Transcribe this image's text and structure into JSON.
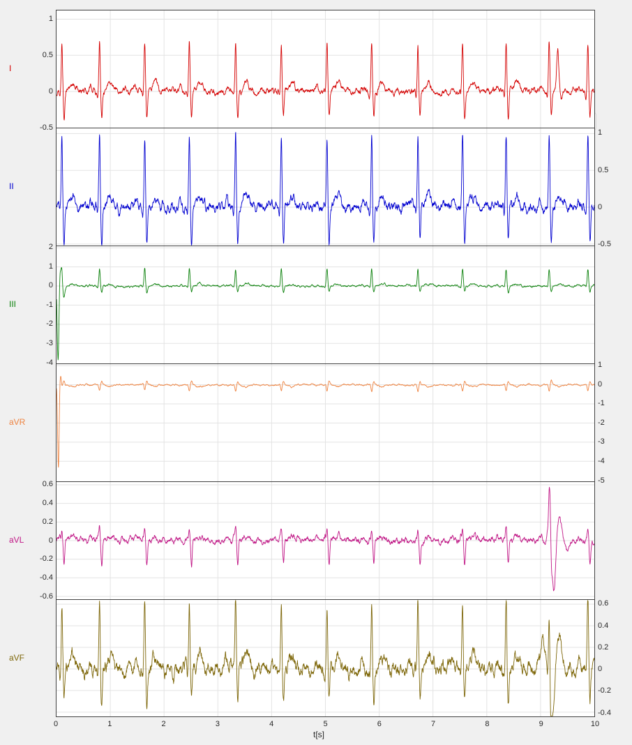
{
  "figure": {
    "background": "#f0f0f0",
    "plot_background": "#ffffff",
    "grid_color": "#e3e3e3",
    "axis_color": "#404040",
    "tick_label_color": "#262626"
  },
  "toolbar": {
    "icons": [
      {
        "name": "export-icon"
      },
      {
        "name": "brush-icon"
      },
      {
        "name": "datatip-icon"
      },
      {
        "name": "pan-icon"
      },
      {
        "name": "zoom-in-icon"
      },
      {
        "name": "zoom-out-icon"
      },
      {
        "name": "restore-view-icon"
      }
    ]
  },
  "chart_data": {
    "type": "line",
    "title": "",
    "x_label": "t[s]",
    "xlim": [
      0,
      10
    ],
    "x_ticks": [
      0,
      1,
      2,
      3,
      4,
      5,
      6,
      7,
      8,
      9,
      10
    ],
    "grid": true,
    "beat_times": [
      0.1,
      0.8,
      1.64,
      2.47,
      3.33,
      4.18,
      5.03,
      5.86,
      6.72,
      7.55,
      8.36,
      9.16,
      9.88
    ],
    "leads": [
      {
        "name": "I",
        "color": "#d40000",
        "tick_side": "left",
        "yticks": [
          1,
          0.5,
          0,
          -0.5
        ],
        "ylim": [
          -0.5,
          1.12
        ],
        "waveform": {
          "p": 0.05,
          "q": -0.06,
          "r": 0.66,
          "s": -0.36,
          "t": 0.12
        },
        "noise_amp": 0.03,
        "wander_amp": 0.012,
        "events": [
          {
            "time": 9.32,
            "amp": 0.5,
            "width": 0.018
          },
          {
            "time": 9.38,
            "amp": -0.22,
            "width": 0.025
          }
        ]
      },
      {
        "name": "II",
        "color": "#0000d0",
        "tick_side": "right",
        "yticks": [
          1,
          0.5,
          0,
          -0.5
        ],
        "ylim": [
          -0.52,
          1.07
        ],
        "waveform": {
          "p": 0.08,
          "q": -0.08,
          "r": 0.95,
          "s": -0.48,
          "t": 0.16
        },
        "noise_amp": 0.045,
        "wander_amp": 0.015,
        "events": []
      },
      {
        "name": "III",
        "color": "#0a800a",
        "tick_side": "left",
        "yticks": [
          2,
          1,
          0,
          -1,
          -2,
          -3,
          -4
        ],
        "ylim": [
          -4.05,
          2.08
        ],
        "waveform": {
          "p": 0.04,
          "q": -0.05,
          "r": 0.88,
          "s": -0.3,
          "t": 0.1
        },
        "noise_amp": 0.035,
        "wander_amp": 0.015,
        "events": [
          {
            "time": 0.03,
            "amp": -4.0,
            "width": 0.016
          },
          {
            "time": 0.07,
            "amp": 1.0,
            "width": 0.02
          },
          {
            "time": 0.12,
            "amp": -0.45,
            "width": 0.03
          }
        ]
      },
      {
        "name": "aVR",
        "color": "#ee8340",
        "tick_side": "right",
        "yticks": [
          1,
          0,
          -1,
          -2,
          -3,
          -4,
          -5
        ],
        "ylim": [
          -5.05,
          1.08
        ],
        "waveform": {
          "p": -0.04,
          "q": 0.04,
          "r": -0.33,
          "s": 0.18,
          "t": -0.1
        },
        "noise_amp": 0.028,
        "wander_amp": 0.012,
        "events": [
          {
            "time": 0.035,
            "amp": -4.4,
            "width": 0.014
          },
          {
            "time": 0.08,
            "amp": 0.55,
            "width": 0.02
          }
        ]
      },
      {
        "name": "aVL",
        "color": "#c01585",
        "tick_side": "left",
        "yticks": [
          0.6,
          0.4,
          0.2,
          0,
          -0.2,
          -0.4,
          -0.6
        ],
        "ylim": [
          -0.63,
          0.63
        ],
        "waveform": {
          "p": 0.02,
          "q": 0.04,
          "r": 0.12,
          "s": -0.26,
          "t": 0.04
        },
        "noise_amp": 0.022,
        "wander_amp": 0.01,
        "events": [
          {
            "time": 9.17,
            "amp": 0.5,
            "width": 0.02
          },
          {
            "time": 9.25,
            "amp": -0.55,
            "width": 0.03
          },
          {
            "time": 9.35,
            "amp": 0.2,
            "width": 0.04
          },
          {
            "time": 9.48,
            "amp": -0.08,
            "width": 0.05
          }
        ]
      },
      {
        "name": "aVF",
        "color": "#7d6608",
        "tick_side": "right",
        "yticks": [
          0.6,
          0.4,
          0.2,
          0,
          -0.2,
          -0.4
        ],
        "ylim": [
          -0.44,
          0.64
        ],
        "waveform": {
          "p": 0.06,
          "q": -0.06,
          "r": 0.62,
          "s": -0.3,
          "t": 0.13
        },
        "noise_amp": 0.045,
        "wander_amp": 0.015,
        "events": [
          {
            "time": 9.05,
            "amp": 0.3,
            "width": 0.03
          },
          {
            "time": 9.22,
            "amp": -0.42,
            "width": 0.04
          },
          {
            "time": 9.33,
            "amp": 0.22,
            "width": 0.04
          }
        ]
      }
    ]
  }
}
